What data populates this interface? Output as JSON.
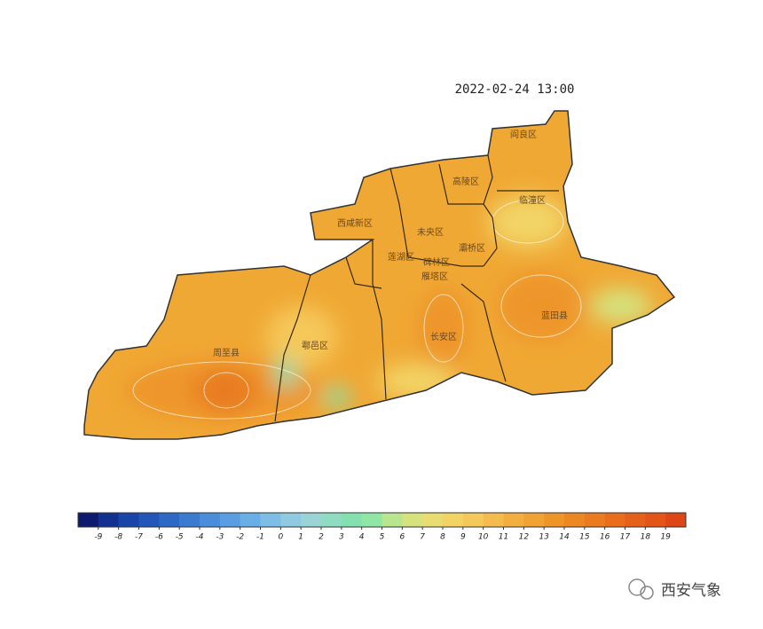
{
  "title": "2022-02-24 13:00",
  "districts": [
    "阎良区",
    "临潼区",
    "高陵区",
    "西咸新区",
    "未央区",
    "灞桥区",
    "长安区",
    "蓝田县",
    "鄠邑区",
    "周至县",
    "雁塔区",
    "莲湖区",
    "碑林区"
  ],
  "colorbar": {
    "ticks": [
      -9,
      -8,
      -7,
      -6,
      -5,
      -4,
      -3,
      -2,
      -1,
      0,
      1,
      2,
      3,
      4,
      5,
      6,
      7,
      8,
      9,
      10,
      11,
      12,
      13,
      14,
      15,
      16,
      17,
      18,
      19
    ],
    "colors": [
      "#0d1a6e",
      "#12308f",
      "#1a45a8",
      "#2356b8",
      "#2d68c4",
      "#3a7bd0",
      "#4a8ddb",
      "#5a9de2",
      "#6aaee6",
      "#7dbde6",
      "#8fcae0",
      "#9bd4d6",
      "#8fdcc2",
      "#85e0b0",
      "#90e6a4",
      "#b8e590",
      "#d6e27e",
      "#e8dc72",
      "#f2d466",
      "#f5c85a",
      "#f4bc4e",
      "#f2ae40",
      "#f0a234",
      "#ee952a",
      "#ec8824",
      "#ea7b20",
      "#e86e1c",
      "#e5601a",
      "#e25418",
      "#de4616"
    ]
  },
  "watermark": "西安气象"
}
